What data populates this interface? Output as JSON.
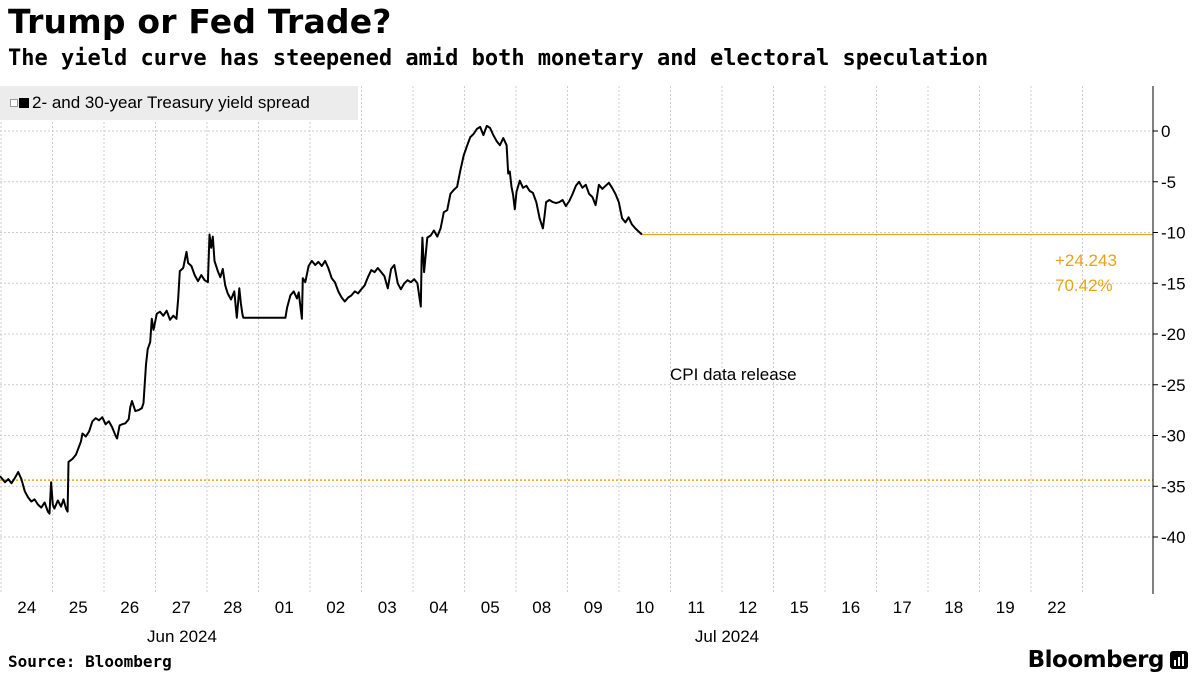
{
  "title": "Trump or Fed Trade?",
  "subtitle": "The yield curve has steepened amid both monetary and electoral speculation",
  "legend_label": "2- and 30-year Treasury yield spread",
  "annotation_change": "+24.243",
  "annotation_pct": "70.42%",
  "event_note": "CPI data release",
  "source": "Source: Bloomberg",
  "brand": "Bloomberg",
  "colors": {
    "line": "#000000",
    "reference": "#e8a317",
    "grid": "#cccccc",
    "legend_bg": "#ececec"
  },
  "chart_data": {
    "type": "line",
    "title": "Trump or Fed Trade?",
    "subtitle": "The yield curve has steepened amid both monetary and electoral speculation",
    "ylabel": "",
    "xlabel": "",
    "ylim": [
      -40,
      3
    ],
    "y_ticks": [
      0,
      -5,
      -10,
      -15,
      -20,
      -25,
      -30,
      -35,
      -40
    ],
    "y_tick_labels": [
      "0",
      "-5",
      "-10",
      "-15",
      "-20",
      "-25",
      "-30",
      "-35",
      "-40"
    ],
    "x_categories": [
      "24",
      "25",
      "26",
      "27",
      "28",
      "01",
      "02",
      "03",
      "04",
      "05",
      "08",
      "09",
      "10",
      "11",
      "12",
      "15",
      "16",
      "17",
      "18",
      "19",
      "22"
    ],
    "month_labels": [
      {
        "label": "Jun 2024",
        "at": 4.5
      },
      {
        "label": "Jul 2024",
        "at": 14.5
      }
    ],
    "grid": true,
    "reference_line": -34.4,
    "last_value": -10.2,
    "series": [
      {
        "name": "2- and 30-year Treasury yield spread",
        "points": [
          [
            0,
            -34.0
          ],
          [
            0.3,
            -34.6
          ],
          [
            0.5,
            -34.3
          ],
          [
            0.7,
            -34.7
          ],
          [
            0.9,
            -34.2
          ],
          [
            1.1,
            -33.6
          ],
          [
            1.3,
            -34.3
          ],
          [
            1.5,
            -35.5
          ],
          [
            1.7,
            -36.1
          ],
          [
            1.9,
            -36.5
          ],
          [
            2.1,
            -36.3
          ],
          [
            2.3,
            -36.8
          ],
          [
            2.5,
            -37.1
          ],
          [
            2.7,
            -36.6
          ],
          [
            2.9,
            -37.5
          ],
          [
            3.0,
            -37.7
          ],
          [
            3.1,
            -34.6
          ],
          [
            3.2,
            -36.8
          ],
          [
            3.3,
            -37.2
          ],
          [
            3.5,
            -36.4
          ],
          [
            3.7,
            -37.0
          ],
          [
            3.85,
            -36.3
          ],
          [
            4.0,
            -37.2
          ],
          [
            4.1,
            -37.5
          ],
          [
            4.15,
            -32.6
          ],
          [
            4.4,
            -32.3
          ],
          [
            4.6,
            -31.9
          ],
          [
            4.9,
            -30.6
          ],
          [
            5.0,
            -29.8
          ],
          [
            5.2,
            -30.1
          ],
          [
            5.4,
            -29.6
          ],
          [
            5.6,
            -28.6
          ],
          [
            5.8,
            -28.3
          ],
          [
            6.0,
            -28.5
          ],
          [
            6.2,
            -28.2
          ],
          [
            6.4,
            -28.9
          ],
          [
            6.6,
            -28.6
          ],
          [
            6.8,
            -29.2
          ],
          [
            7.0,
            -30.0
          ],
          [
            7.1,
            -30.3
          ],
          [
            7.25,
            -29.0
          ],
          [
            7.4,
            -28.9
          ],
          [
            7.6,
            -28.8
          ],
          [
            7.8,
            -28.4
          ],
          [
            7.9,
            -27.2
          ],
          [
            8.0,
            -26.6
          ],
          [
            8.2,
            -27.6
          ],
          [
            8.4,
            -27.5
          ],
          [
            8.6,
            -27.3
          ],
          [
            8.7,
            -26.8
          ],
          [
            8.85,
            -23.0
          ],
          [
            8.95,
            -21.5
          ],
          [
            9.1,
            -20.8
          ],
          [
            9.2,
            -18.5
          ],
          [
            9.3,
            -19.6
          ],
          [
            9.5,
            -18.0
          ],
          [
            9.7,
            -17.8
          ],
          [
            9.9,
            -18.2
          ],
          [
            10.1,
            -17.7
          ],
          [
            10.3,
            -18.6
          ],
          [
            10.5,
            -18.2
          ],
          [
            10.7,
            -18.5
          ],
          [
            10.8,
            -16.5
          ],
          [
            10.9,
            -13.8
          ],
          [
            11.1,
            -13.5
          ],
          [
            11.3,
            -11.9
          ],
          [
            11.4,
            -13.0
          ],
          [
            11.6,
            -13.3
          ],
          [
            11.8,
            -14.2
          ],
          [
            12.0,
            -14.8
          ],
          [
            12.2,
            -14.2
          ],
          [
            12.4,
            -14.7
          ],
          [
            12.6,
            -14.9
          ],
          [
            12.7,
            -10.2
          ],
          [
            12.8,
            -11.5
          ],
          [
            12.9,
            -10.4
          ],
          [
            13.0,
            -12.8
          ],
          [
            13.2,
            -13.8
          ],
          [
            13.35,
            -14.4
          ],
          [
            13.5,
            -13.6
          ],
          [
            13.65,
            -15.2
          ],
          [
            13.8,
            -16.0
          ],
          [
            14.0,
            -16.6
          ],
          [
            14.2,
            -15.8
          ],
          [
            14.35,
            -18.4
          ],
          [
            14.5,
            -15.5
          ],
          [
            14.6,
            -17.0
          ],
          [
            14.7,
            -18.1
          ],
          [
            14.75,
            -18.4
          ],
          [
            15.0,
            -18.4
          ],
          [
            15.5,
            -18.4
          ],
          [
            16.0,
            -18.4
          ],
          [
            16.5,
            -18.4
          ],
          [
            17.0,
            -18.4
          ],
          [
            17.3,
            -18.4
          ],
          [
            17.4,
            -17.4
          ],
          [
            17.6,
            -16.2
          ],
          [
            17.8,
            -15.8
          ],
          [
            18.0,
            -16.5
          ],
          [
            18.1,
            -15.9
          ],
          [
            18.2,
            -17.2
          ],
          [
            18.3,
            -18.5
          ],
          [
            18.35,
            -14.5
          ],
          [
            18.5,
            -14.9
          ],
          [
            18.7,
            -13.3
          ],
          [
            18.9,
            -12.8
          ],
          [
            19.1,
            -13.2
          ],
          [
            19.3,
            -12.9
          ],
          [
            19.5,
            -13.3
          ],
          [
            19.7,
            -12.8
          ],
          [
            19.9,
            -13.5
          ],
          [
            20.1,
            -14.5
          ],
          [
            20.3,
            -14.9
          ],
          [
            20.5,
            -15.8
          ],
          [
            20.7,
            -16.4
          ],
          [
            20.9,
            -16.8
          ],
          [
            21.1,
            -16.4
          ],
          [
            21.3,
            -16.2
          ],
          [
            21.5,
            -15.8
          ],
          [
            21.7,
            -16.0
          ],
          [
            21.9,
            -15.6
          ],
          [
            22.1,
            -15.2
          ],
          [
            22.3,
            -14.4
          ],
          [
            22.5,
            -13.7
          ],
          [
            22.7,
            -13.9
          ],
          [
            22.9,
            -13.5
          ],
          [
            23.1,
            -13.9
          ],
          [
            23.3,
            -14.3
          ],
          [
            23.5,
            -15.5
          ],
          [
            23.7,
            -13.6
          ],
          [
            23.9,
            -13.2
          ],
          [
            24.1,
            -15.0
          ],
          [
            24.3,
            -15.6
          ],
          [
            24.5,
            -15.0
          ],
          [
            24.7,
            -14.7
          ],
          [
            24.9,
            -14.9
          ],
          [
            25.1,
            -14.6
          ],
          [
            25.3,
            -15.0
          ],
          [
            25.45,
            -16.7
          ],
          [
            25.5,
            -17.3
          ],
          [
            25.55,
            -12.8
          ],
          [
            25.6,
            -10.5
          ],
          [
            25.7,
            -13.9
          ],
          [
            25.9,
            -10.5
          ],
          [
            26.1,
            -10.3
          ],
          [
            26.3,
            -9.8
          ],
          [
            26.5,
            -10.4
          ],
          [
            26.7,
            -9.6
          ],
          [
            26.9,
            -8.0
          ],
          [
            27.1,
            -7.8
          ],
          [
            27.3,
            -6.2
          ],
          [
            27.5,
            -5.8
          ],
          [
            27.7,
            -5.5
          ],
          [
            27.9,
            -3.9
          ],
          [
            28.1,
            -2.4
          ],
          [
            28.3,
            -1.5
          ],
          [
            28.5,
            -0.6
          ],
          [
            28.7,
            -0.3
          ],
          [
            28.9,
            0.2
          ],
          [
            29.1,
            0.4
          ],
          [
            29.3,
            -0.4
          ],
          [
            29.5,
            0.5
          ],
          [
            29.7,
            0.3
          ],
          [
            29.9,
            -0.4
          ],
          [
            30.1,
            -1.0
          ],
          [
            30.3,
            -1.4
          ],
          [
            30.5,
            -0.7
          ],
          [
            30.7,
            -1.4
          ],
          [
            30.8,
            -4.2
          ],
          [
            30.9,
            -4.0
          ],
          [
            31.0,
            -5.5
          ],
          [
            31.1,
            -6.3
          ],
          [
            31.2,
            -7.7
          ],
          [
            31.3,
            -6.0
          ],
          [
            31.5,
            -4.9
          ],
          [
            31.7,
            -5.6
          ],
          [
            31.9,
            -5.4
          ],
          [
            32.1,
            -5.9
          ],
          [
            32.3,
            -6.1
          ],
          [
            32.5,
            -7.0
          ],
          [
            32.7,
            -8.6
          ],
          [
            32.9,
            -9.6
          ],
          [
            33.0,
            -8.4
          ],
          [
            33.1,
            -7.0
          ],
          [
            33.3,
            -6.8
          ],
          [
            33.5,
            -7.0
          ],
          [
            33.7,
            -7.1
          ],
          [
            33.9,
            -7.0
          ],
          [
            34.1,
            -6.8
          ],
          [
            34.3,
            -7.4
          ],
          [
            34.5,
            -6.9
          ],
          [
            34.7,
            -6.2
          ],
          [
            34.9,
            -5.4
          ],
          [
            35.1,
            -5.0
          ],
          [
            35.3,
            -5.6
          ],
          [
            35.5,
            -5.3
          ],
          [
            35.7,
            -6.2
          ],
          [
            35.9,
            -6.5
          ],
          [
            36.1,
            -7.3
          ],
          [
            36.3,
            -5.3
          ],
          [
            36.5,
            -5.7
          ],
          [
            36.7,
            -5.4
          ],
          [
            36.9,
            -5.1
          ],
          [
            37.1,
            -5.6
          ],
          [
            37.3,
            -6.2
          ],
          [
            37.5,
            -7.0
          ],
          [
            37.7,
            -8.6
          ],
          [
            37.9,
            -9.0
          ],
          [
            38.1,
            -8.5
          ],
          [
            38.3,
            -9.2
          ],
          [
            38.5,
            -9.6
          ],
          [
            38.7,
            -9.9
          ],
          [
            38.9,
            -10.2
          ]
        ]
      }
    ]
  }
}
